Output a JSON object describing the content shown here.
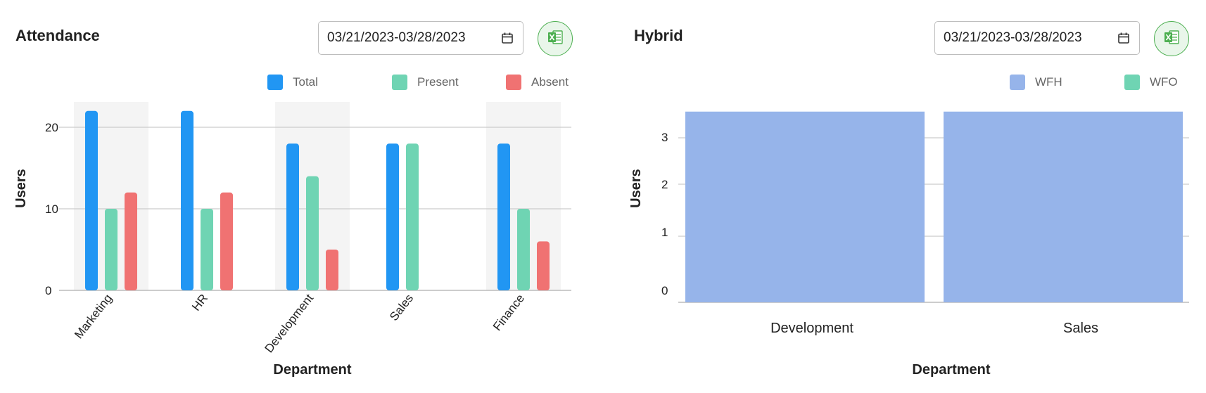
{
  "colors": {
    "total": "#2196f3",
    "present": "#6fd4b3",
    "absent": "#f07272",
    "wfh": "#96b4ea",
    "wfo": "#6fd4b3",
    "excel_green": "#4caf50",
    "highlight_band": "#f4f4f4",
    "gridline": "#cccccc"
  },
  "attendance": {
    "title": "Attendance",
    "date_range": "03/21/2023-03/28/2023",
    "icons": {
      "calendar": "calendar-icon",
      "export": "excel-icon"
    },
    "legend": [
      {
        "label": "Total",
        "color": "#2196f3"
      },
      {
        "label": "Present",
        "color": "#6fd4b3"
      },
      {
        "label": "Absent",
        "color": "#f07272"
      }
    ]
  },
  "hybrid": {
    "title": "Hybrid",
    "date_range": "03/21/2023-03/28/2023",
    "icons": {
      "calendar": "calendar-icon",
      "export": "excel-icon"
    },
    "legend": [
      {
        "label": "WFH",
        "color": "#96b4ea"
      },
      {
        "label": "WFO",
        "color": "#6fd4b3"
      }
    ]
  },
  "chart_data": [
    {
      "type": "bar",
      "title": "Attendance",
      "xlabel": "Department",
      "ylabel": "Users",
      "categories": [
        "Marketing",
        "HR",
        "Development",
        "Sales",
        "Finance"
      ],
      "series": [
        {
          "name": "Total",
          "values": [
            22,
            22,
            18,
            18,
            18
          ]
        },
        {
          "name": "Present",
          "values": [
            10,
            10,
            14,
            18,
            10
          ]
        },
        {
          "name": "Absent",
          "values": [
            12,
            12,
            5,
            0,
            6
          ]
        }
      ],
      "highlighted_categories": [
        "Marketing",
        "Development",
        "Finance"
      ],
      "yticks": [
        0,
        10,
        20
      ],
      "ylim": [
        0,
        23
      ],
      "grid": true,
      "legend": "top-right"
    },
    {
      "type": "bar",
      "title": "Hybrid",
      "xlabel": "Department",
      "ylabel": "Users",
      "categories": [
        "Development",
        "Sales"
      ],
      "series": [
        {
          "name": "WFH",
          "values": [
            3.5,
            3.5
          ]
        },
        {
          "name": "WFO",
          "values": [
            0,
            0
          ]
        }
      ],
      "yticks": [
        0,
        1,
        2,
        3
      ],
      "ylim": [
        0,
        3.5
      ],
      "grid": true,
      "legend": "top-right"
    }
  ]
}
